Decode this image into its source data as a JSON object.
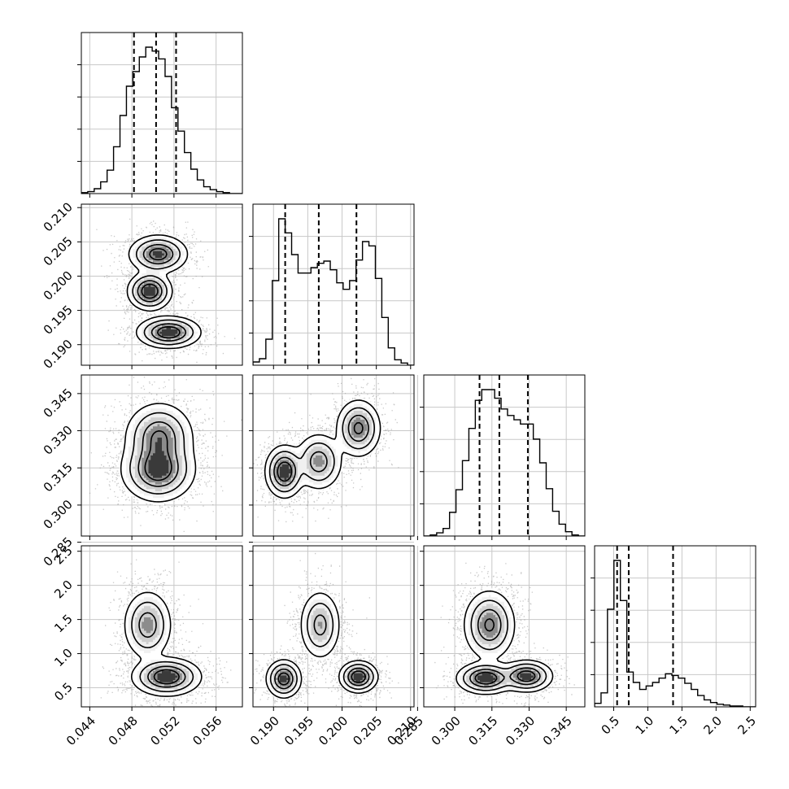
{
  "chart_data": {
    "type": "corner",
    "grid": true,
    "parameters": [
      {
        "ticks": [
          "0.044",
          "0.048",
          "0.052",
          "0.056"
        ],
        "range": [
          0.0432,
          0.0585
        ]
      },
      {
        "ticks": [
          "0.190",
          "0.195",
          "0.200",
          "0.205",
          "0.210"
        ],
        "range": [
          0.187,
          0.2105
        ]
      },
      {
        "ticks": [
          "0.285",
          "0.300",
          "0.315",
          "0.330",
          "0.345"
        ],
        "range": [
          0.2875,
          0.3525
        ]
      },
      {
        "ticks": [
          "0.5",
          "1.0",
          "1.5",
          "2.0",
          "2.5"
        ],
        "range": [
          0.22,
          2.58
        ]
      }
    ],
    "quantiles": [
      [
        0.0482,
        0.0503,
        0.0522
      ],
      [
        0.1917,
        0.1966,
        0.2021
      ],
      [
        0.31,
        0.318,
        0.3295
      ],
      [
        0.55,
        0.72,
        1.37
      ]
    ],
    "histograms": [
      {
        "values": [
          1,
          2,
          5,
          12,
          24,
          48,
          80,
          110,
          125,
          140,
          150,
          146,
          138,
          120,
          88,
          64,
          42,
          25,
          14,
          7,
          4,
          2,
          1,
          0,
          0
        ]
      },
      {
        "values": [
          3,
          6,
          24,
          78,
          135,
          122,
          102,
          85,
          85,
          90,
          94,
          96,
          88,
          76,
          70,
          78,
          97,
          114,
          110,
          80,
          44,
          16,
          5,
          2,
          0
        ]
      },
      {
        "values": [
          0,
          1,
          3,
          7,
          22,
          43,
          70,
          100,
          126,
          136,
          136,
          128,
          118,
          112,
          108,
          104,
          104,
          90,
          68,
          44,
          23,
          11,
          4,
          1,
          0
        ]
      },
      {
        "values": [
          4,
          16,
          112,
          168,
          122,
          40,
          28,
          20,
          24,
          28,
          33,
          38,
          36,
          33,
          27,
          20,
          13,
          8,
          5,
          3,
          2,
          1,
          1,
          0,
          0
        ]
      }
    ],
    "modes": {
      "1-0": [
        {
          "x": 0.0505,
          "y": 0.2032,
          "sx": 0.0012,
          "sy": 0.0012,
          "w": 0.35
        },
        {
          "x": 0.0497,
          "y": 0.1978,
          "sx": 0.0009,
          "sy": 0.0012,
          "w": 0.3
        },
        {
          "x": 0.0515,
          "y": 0.1918,
          "sx": 0.0013,
          "sy": 0.001,
          "w": 0.35
        }
      ],
      "2-0": [
        {
          "x": 0.0505,
          "y": 0.3142,
          "sx": 0.0015,
          "sy": 0.0055,
          "w": 0.55
        },
        {
          "x": 0.0506,
          "y": 0.3275,
          "sx": 0.0014,
          "sy": 0.006,
          "w": 0.45
        }
      ],
      "2-1": [
        {
          "x": 0.1916,
          "y": 0.3135,
          "sx": 0.0012,
          "sy": 0.0045,
          "w": 0.35
        },
        {
          "x": 0.1966,
          "y": 0.3175,
          "sx": 0.0015,
          "sy": 0.005,
          "w": 0.3
        },
        {
          "x": 0.2024,
          "y": 0.331,
          "sx": 0.0014,
          "sy": 0.005,
          "w": 0.35
        }
      ],
      "3-0": [
        {
          "x": 0.0495,
          "y": 1.42,
          "sx": 0.001,
          "sy": 0.22,
          "w": 0.45
        },
        {
          "x": 0.0513,
          "y": 0.66,
          "sx": 0.0014,
          "sy": 0.12,
          "w": 0.55
        }
      ],
      "3-1": [
        {
          "x": 0.1915,
          "y": 0.63,
          "sx": 0.0011,
          "sy": 0.12,
          "w": 0.3
        },
        {
          "x": 0.1968,
          "y": 1.42,
          "sx": 0.0013,
          "sy": 0.22,
          "w": 0.4
        },
        {
          "x": 0.2024,
          "y": 0.66,
          "sx": 0.0012,
          "sy": 0.1,
          "w": 0.3
        }
      ],
      "3-2": [
        {
          "x": 0.314,
          "y": 1.42,
          "sx": 0.0045,
          "sy": 0.22,
          "w": 0.45
        },
        {
          "x": 0.3125,
          "y": 0.64,
          "sx": 0.005,
          "sy": 0.1,
          "w": 0.3
        },
        {
          "x": 0.329,
          "y": 0.67,
          "sx": 0.0045,
          "sy": 0.1,
          "w": 0.25
        }
      ]
    }
  }
}
